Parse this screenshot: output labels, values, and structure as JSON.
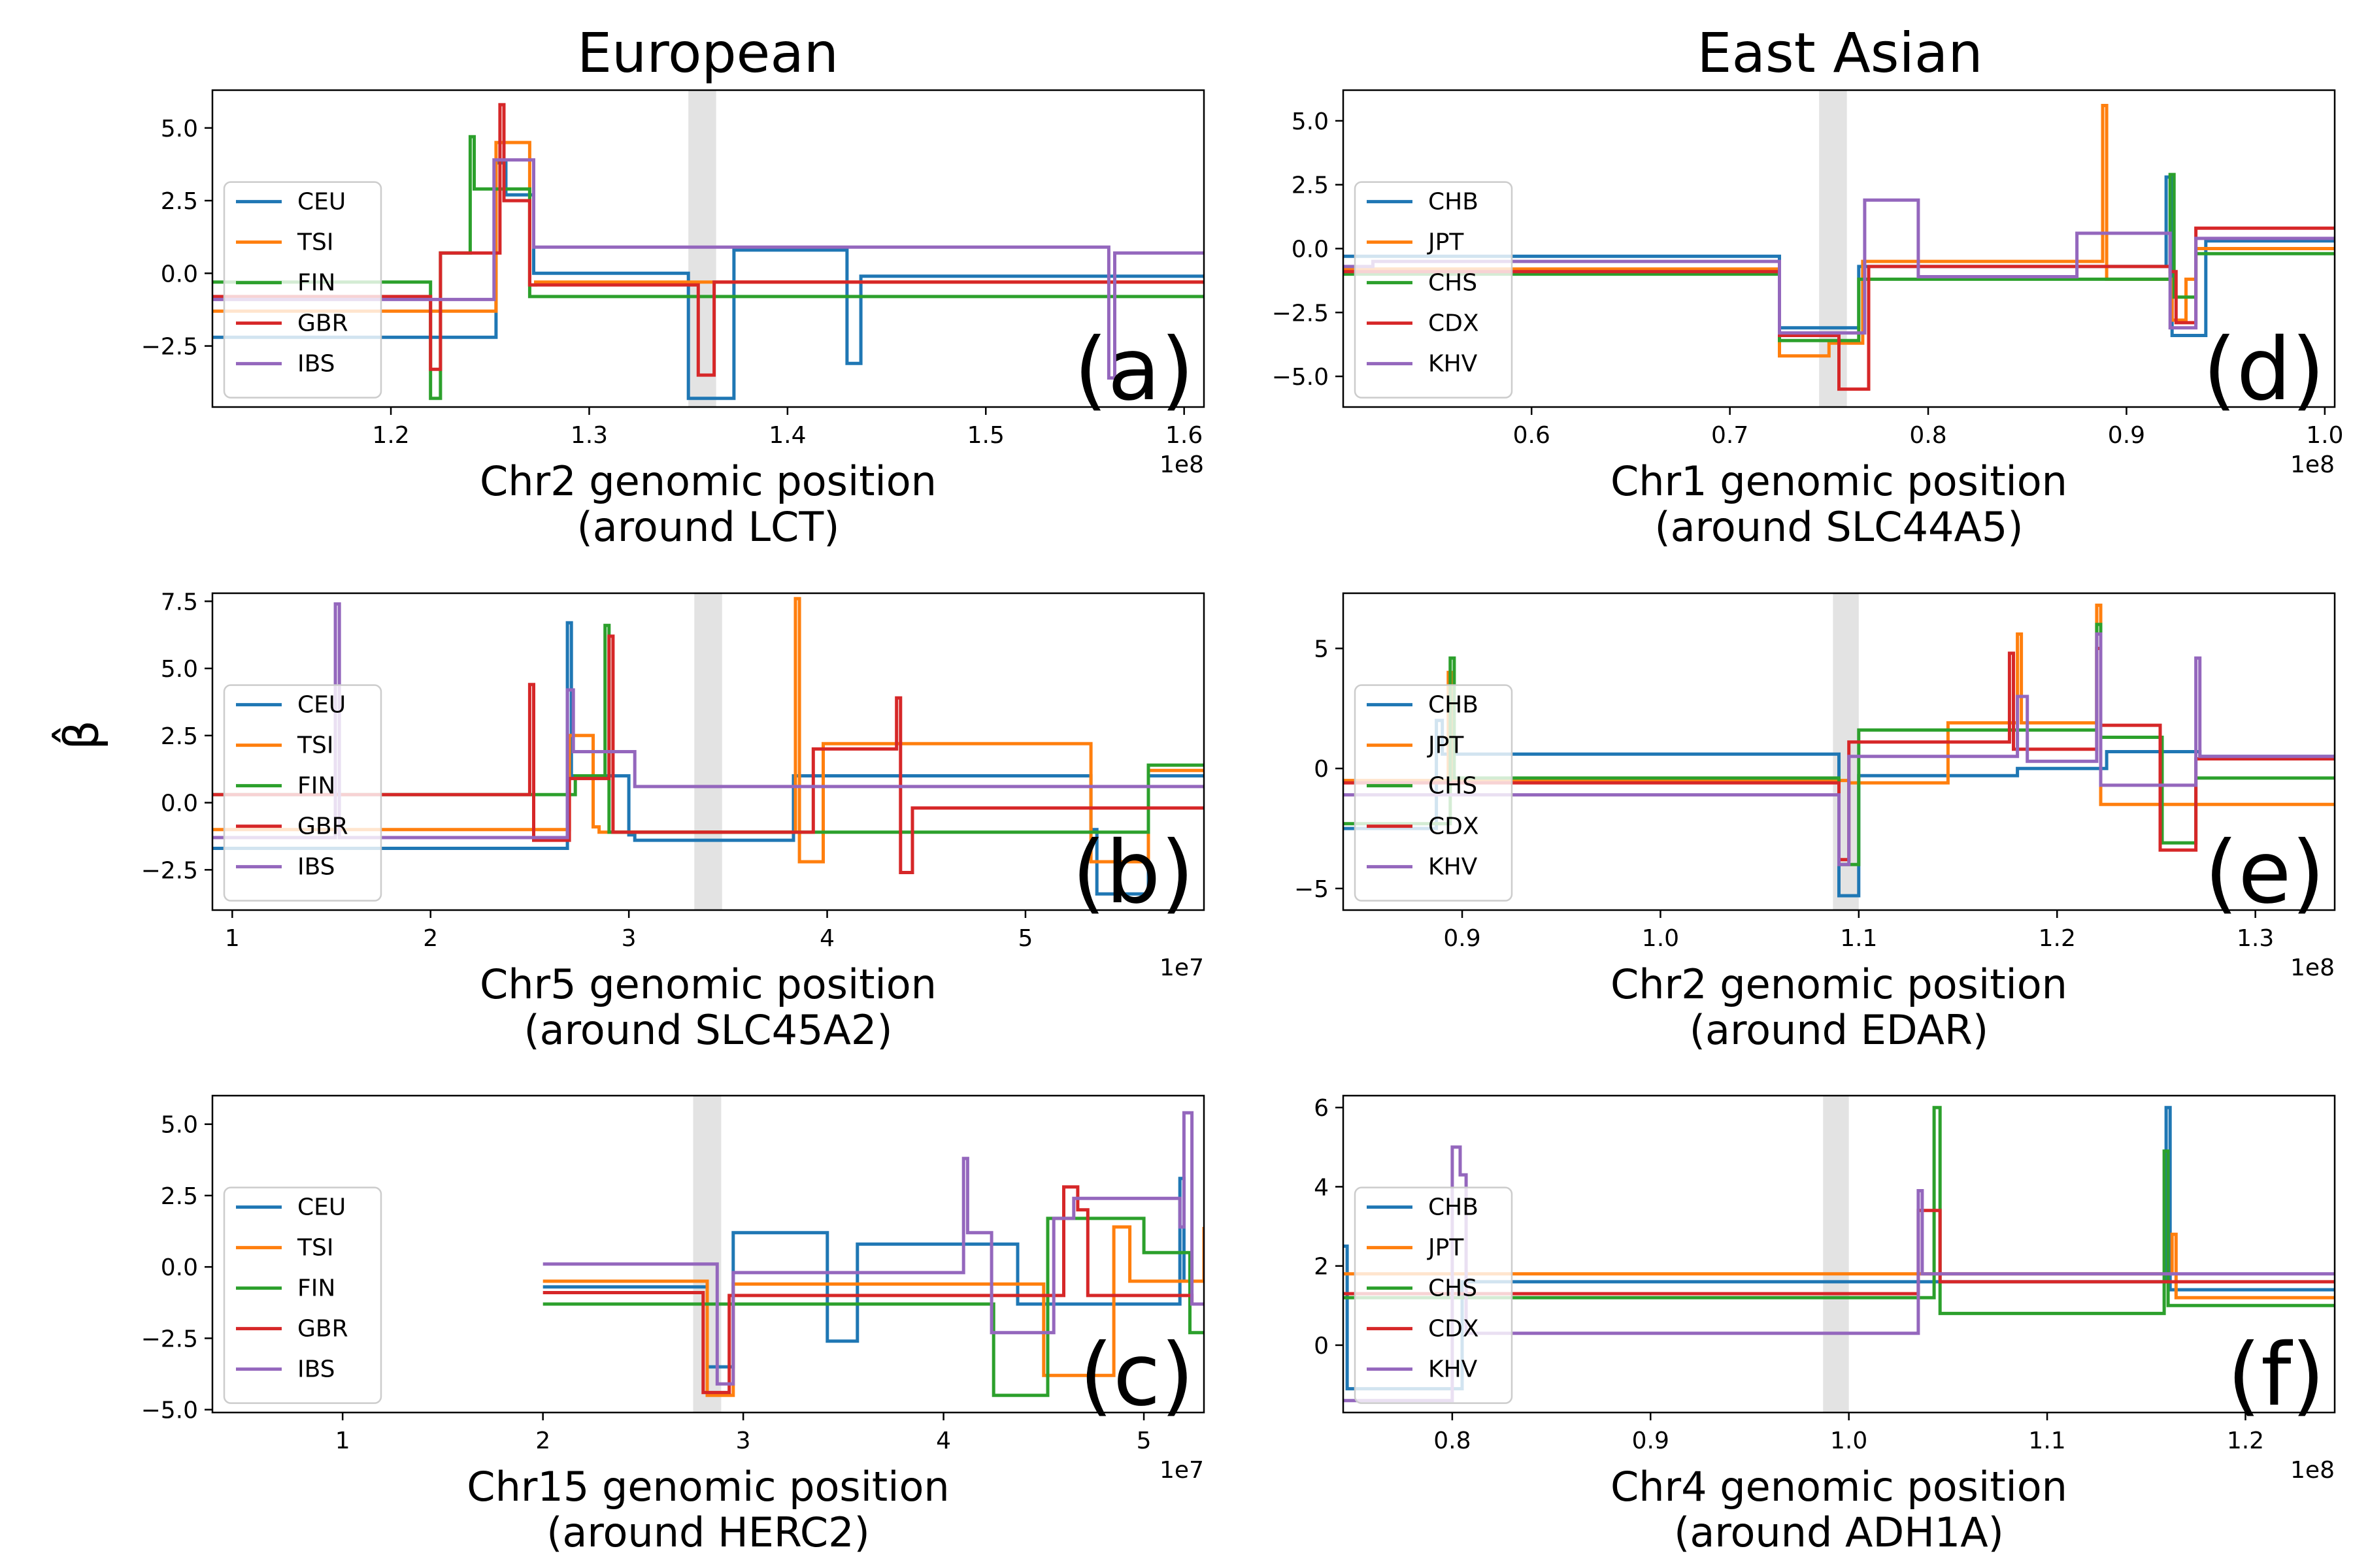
{
  "figure": {
    "column_titles": [
      "European",
      "East Asian"
    ],
    "ylabel": "β̂",
    "colors": {
      "blue": "#1f77b4",
      "orange": "#ff7f0e",
      "green": "#2ca02c",
      "red": "#d62728",
      "purple": "#9467bd",
      "highlight": "#e3e3e3"
    }
  },
  "chart_data": [
    {
      "id": "a",
      "type": "line",
      "step": true,
      "letter": "(a)",
      "xlabel_line1": "Chr2 genomic position",
      "xlabel_line2": "(around LCT)",
      "x_offset_label": "1e8",
      "xlim": [
        1.11,
        1.61
      ],
      "ylim": [
        -4.6,
        6.3
      ],
      "x_ticks": [
        1.2,
        1.3,
        1.4,
        1.5,
        1.6
      ],
      "x_tick_labels": [
        "1.2",
        "1.3",
        "1.4",
        "1.5",
        "1.6"
      ],
      "y_ticks": [
        -2.5,
        0.0,
        2.5,
        5.0
      ],
      "y_tick_labels": [
        "−2.5",
        "0.0",
        "2.5",
        "5.0"
      ],
      "highlight": [
        1.35,
        1.364
      ],
      "legend": [
        "CEU",
        "TSI",
        "FIN",
        "GBR",
        "IBS"
      ],
      "series": [
        {
          "name": "CEU",
          "color": "#1f77b4",
          "x": [
            1.11,
            1.253,
            1.258,
            1.272,
            1.35,
            1.373,
            1.43,
            1.437,
            1.61
          ],
          "y": [
            -2.2,
            3.8,
            2.7,
            0.0,
            -4.3,
            0.8,
            -3.1,
            -0.1,
            -0.1
          ]
        },
        {
          "name": "TSI",
          "color": "#ff7f0e",
          "x": [
            1.11,
            1.253,
            1.256,
            1.27,
            1.273,
            1.61
          ],
          "y": [
            -1.3,
            4.5,
            4.5,
            -0.4,
            -0.3,
            -0.3
          ]
        },
        {
          "name": "FIN",
          "color": "#2ca02c",
          "x": [
            1.11,
            1.22,
            1.225,
            1.24,
            1.242,
            1.27,
            1.273,
            1.61
          ],
          "y": [
            -0.3,
            -4.3,
            0.7,
            4.7,
            2.9,
            -0.8,
            -0.8,
            -0.8
          ]
        },
        {
          "name": "GBR",
          "color": "#d62728",
          "x": [
            1.11,
            1.22,
            1.225,
            1.255,
            1.257,
            1.26,
            1.27,
            1.355,
            1.363,
            1.61
          ],
          "y": [
            -0.8,
            -3.3,
            0.7,
            5.8,
            2.5,
            2.5,
            -0.4,
            -3.5,
            -0.3,
            -0.3
          ]
        },
        {
          "name": "IBS",
          "color": "#9467bd",
          "x": [
            1.11,
            1.24,
            1.252,
            1.272,
            1.562,
            1.565,
            1.61
          ],
          "y": [
            -0.9,
            -0.9,
            3.9,
            0.9,
            -3.6,
            0.7,
            0.7
          ]
        }
      ]
    },
    {
      "id": "b",
      "type": "line",
      "step": true,
      "letter": "(b)",
      "xlabel_line1": "Chr5 genomic position",
      "xlabel_line2": "(around SLC45A2)",
      "x_offset_label": "1e7",
      "xlim": [
        0.9,
        5.9
      ],
      "ylim": [
        -4.0,
        7.8
      ],
      "x_ticks": [
        1,
        2,
        3,
        4,
        5
      ],
      "x_tick_labels": [
        "1",
        "2",
        "3",
        "4",
        "5"
      ],
      "y_ticks": [
        -2.5,
        0.0,
        2.5,
        5.0,
        7.5
      ],
      "y_tick_labels": [
        "−2.5",
        "0.0",
        "2.5",
        "5.0",
        "7.5"
      ],
      "highlight": [
        3.33,
        3.47
      ],
      "legend": [
        "CEU",
        "TSI",
        "FIN",
        "GBR",
        "IBS"
      ],
      "series": [
        {
          "name": "CEU",
          "color": "#1f77b4",
          "x": [
            0.9,
            2.69,
            2.71,
            2.73,
            3.0,
            3.03,
            3.83,
            3.85,
            5.33,
            5.36,
            5.62,
            5.9
          ],
          "y": [
            -1.7,
            6.7,
            1.0,
            1.0,
            -1.2,
            -1.4,
            1.0,
            1.0,
            -1.0,
            -3.4,
            1.0,
            1.0
          ]
        },
        {
          "name": "TSI",
          "color": "#ff7f0e",
          "x": [
            0.9,
            2.7,
            2.72,
            2.82,
            2.85,
            3.84,
            3.86,
            3.98,
            5.33,
            5.36,
            5.62,
            5.9
          ],
          "y": [
            -1.0,
            2.5,
            2.5,
            -0.9,
            -1.1,
            7.6,
            -2.2,
            2.2,
            -2.2,
            -2.2,
            1.2,
            1.2
          ]
        },
        {
          "name": "FIN",
          "color": "#2ca02c",
          "x": [
            0.9,
            2.7,
            2.73,
            2.88,
            2.9,
            3.91,
            5.62,
            5.9
          ],
          "y": [
            0.3,
            0.3,
            1.0,
            6.6,
            -1.1,
            -1.1,
            1.4,
            1.4
          ]
        },
        {
          "name": "GBR",
          "color": "#d62728",
          "x": [
            0.9,
            2.5,
            2.52,
            2.7,
            2.73,
            2.9,
            2.92,
            3.93,
            4.35,
            4.37,
            4.43,
            5.9
          ],
          "y": [
            0.3,
            4.4,
            -1.4,
            0.9,
            0.9,
            6.2,
            -1.1,
            2.0,
            3.9,
            -2.6,
            -0.2,
            -0.2
          ]
        },
        {
          "name": "IBS",
          "color": "#9467bd",
          "x": [
            0.9,
            1.52,
            1.54,
            2.69,
            2.72,
            3.03,
            5.9
          ],
          "y": [
            -1.3,
            7.4,
            -1.3,
            4.2,
            1.9,
            0.6,
            0.6
          ]
        }
      ]
    },
    {
      "id": "c",
      "type": "line",
      "step": true,
      "letter": "(c)",
      "xlabel_line1": "Chr15 genomic position",
      "xlabel_line2": "(around HERC2)",
      "x_offset_label": "1e7",
      "xlim": [
        0.35,
        5.3
      ],
      "ylim": [
        -5.1,
        6.0
      ],
      "x_ticks": [
        1,
        2,
        3,
        4,
        5
      ],
      "x_tick_labels": [
        "1",
        "2",
        "3",
        "4",
        "5"
      ],
      "y_ticks": [
        -5.0,
        -2.5,
        0.0,
        2.5,
        5.0
      ],
      "y_tick_labels": [
        "−5.0",
        "−2.5",
        "0.0",
        "2.5",
        "5.0"
      ],
      "highlight": [
        2.75,
        2.89
      ],
      "legend": [
        "CEU",
        "TSI",
        "FIN",
        "GBR",
        "IBS"
      ],
      "series": [
        {
          "name": "CEU",
          "color": "#1f77b4",
          "x": [
            2.0,
            2.82,
            2.95,
            3.42,
            3.57,
            4.37,
            4.45,
            5.18,
            5.2,
            5.22,
            5.3
          ],
          "y": [
            -0.7,
            -3.5,
            1.2,
            -2.6,
            0.8,
            -1.3,
            -1.3,
            3.1,
            -0.5,
            -0.5,
            -0.5
          ]
        },
        {
          "name": "TSI",
          "color": "#ff7f0e",
          "x": [
            2.0,
            2.82,
            2.95,
            4.4,
            4.5,
            4.85,
            4.93,
            5.3
          ],
          "y": [
            -0.5,
            -4.5,
            -0.6,
            -0.6,
            -3.8,
            1.4,
            -0.5,
            1.4
          ]
        },
        {
          "name": "FIN",
          "color": "#2ca02c",
          "x": [
            2.0,
            2.93,
            4.25,
            4.52,
            5.0,
            5.23,
            5.3
          ],
          "y": [
            -1.3,
            -1.3,
            -4.5,
            1.7,
            0.5,
            -2.3,
            -2.3
          ]
        },
        {
          "name": "GBR",
          "color": "#d62728",
          "x": [
            2.0,
            2.8,
            2.93,
            4.6,
            4.67,
            4.72,
            5.24,
            5.3
          ],
          "y": [
            -0.9,
            -4.4,
            -1.0,
            2.8,
            2.0,
            -1.0,
            -1.3,
            -1.3
          ]
        },
        {
          "name": "IBS",
          "color": "#9467bd",
          "x": [
            2.0,
            2.87,
            2.95,
            4.1,
            4.12,
            4.24,
            4.42,
            4.55,
            4.65,
            5.18,
            5.2,
            5.24,
            5.3
          ],
          "y": [
            0.1,
            -4.1,
            -0.2,
            3.8,
            1.2,
            -2.3,
            -2.3,
            1.7,
            2.4,
            1.4,
            5.4,
            -1.3,
            -1.3
          ]
        }
      ]
    },
    {
      "id": "d",
      "type": "line",
      "step": true,
      "letter": "(d)",
      "xlabel_line1": "Chr1 genomic position",
      "xlabel_line2": "(around SLC44A5)",
      "x_offset_label": "1e8",
      "xlim": [
        0.505,
        1.005
      ],
      "ylim": [
        -6.2,
        6.2
      ],
      "x_ticks": [
        0.6,
        0.7,
        0.8,
        0.9,
        1.0
      ],
      "x_tick_labels": [
        "0.6",
        "0.7",
        "0.8",
        "0.9",
        "1.0"
      ],
      "y_ticks": [
        -5.0,
        -2.5,
        0.0,
        2.5,
        5.0
      ],
      "y_tick_labels": [
        "−5.0",
        "−2.5",
        "0.0",
        "2.5",
        "5.0"
      ],
      "highlight": [
        0.745,
        0.759
      ],
      "legend": [
        "CHB",
        "JPT",
        "CHS",
        "CDX",
        "KHV"
      ],
      "series": [
        {
          "name": "CHB",
          "color": "#1f77b4",
          "x": [
            0.505,
            0.725,
            0.765,
            0.92,
            0.923,
            0.925,
            0.94,
            1.005
          ],
          "y": [
            -0.3,
            -3.1,
            -0.7,
            2.8,
            -3.4,
            -3.4,
            0.3,
            0.3
          ]
        },
        {
          "name": "JPT",
          "color": "#ff7f0e",
          "x": [
            0.505,
            0.725,
            0.75,
            0.767,
            0.888,
            0.89,
            0.923,
            0.93,
            0.935,
            1.005
          ],
          "y": [
            -0.8,
            -4.2,
            -3.7,
            -0.5,
            5.6,
            -1.2,
            -2.8,
            -1.2,
            0.0,
            0.0
          ]
        },
        {
          "name": "CHS",
          "color": "#2ca02c",
          "x": [
            0.505,
            0.725,
            0.765,
            0.922,
            0.924,
            0.93,
            0.935,
            1.005
          ],
          "y": [
            -1.0,
            -3.6,
            -1.2,
            2.9,
            -1.9,
            -1.9,
            -0.2,
            -0.2
          ]
        },
        {
          "name": "CDX",
          "color": "#d62728",
          "x": [
            0.505,
            0.725,
            0.755,
            0.77,
            0.922,
            0.925,
            0.935,
            1.005
          ],
          "y": [
            -0.9,
            -3.4,
            -5.5,
            -0.7,
            -0.9,
            -2.9,
            0.8,
            0.8
          ]
        },
        {
          "name": "KHV",
          "color": "#9467bd",
          "x": [
            0.505,
            0.52,
            0.725,
            0.768,
            0.795,
            0.875,
            0.922,
            0.925,
            0.935,
            1.005
          ],
          "y": [
            -0.7,
            -0.5,
            -3.3,
            1.9,
            -1.1,
            0.6,
            -3.1,
            -3.1,
            0.4,
            0.4
          ]
        }
      ]
    },
    {
      "id": "e",
      "type": "line",
      "step": true,
      "letter": "(e)",
      "xlabel_line1": "Chr2 genomic position",
      "xlabel_line2": "(around EDAR)",
      "x_offset_label": "1e8",
      "xlim": [
        0.84,
        1.34
      ],
      "ylim": [
        -5.9,
        7.3
      ],
      "x_ticks": [
        0.9,
        1.0,
        1.1,
        1.2,
        1.3
      ],
      "x_tick_labels": [
        "0.9",
        "1.0",
        "1.1",
        "1.2",
        "1.3"
      ],
      "y_ticks": [
        -5,
        0,
        5
      ],
      "y_tick_labels": [
        "−5",
        "0",
        "5"
      ],
      "highlight": [
        1.087,
        1.1
      ],
      "legend": [
        "CHB",
        "JPT",
        "CHS",
        "CDX",
        "KHV"
      ],
      "series": [
        {
          "name": "CHB",
          "color": "#1f77b4",
          "x": [
            0.84,
            0.887,
            0.89,
            1.087,
            1.09,
            1.098,
            1.1,
            1.157,
            1.18,
            1.222,
            1.225,
            1.253,
            1.272,
            1.34
          ],
          "y": [
            -2.5,
            2.0,
            0.6,
            0.6,
            -5.3,
            -5.3,
            -0.3,
            -0.3,
            0.0,
            0.0,
            0.7,
            0.7,
            0.5,
            0.5
          ]
        },
        {
          "name": "JPT",
          "color": "#ff7f0e",
          "x": [
            0.84,
            0.893,
            0.895,
            1.088,
            1.095,
            1.145,
            1.18,
            1.182,
            1.22,
            1.222,
            1.34
          ],
          "y": [
            -0.5,
            4.0,
            -0.5,
            -0.5,
            -0.6,
            1.9,
            5.6,
            1.9,
            6.8,
            -1.5,
            -1.5
          ]
        },
        {
          "name": "CHS",
          "color": "#2ca02c",
          "x": [
            0.84,
            0.894,
            0.896,
            1.09,
            1.1,
            1.17,
            1.22,
            1.222,
            1.253,
            1.27,
            1.34
          ],
          "y": [
            -2.3,
            4.6,
            -0.4,
            -4.0,
            1.6,
            1.6,
            6.0,
            1.3,
            -3.1,
            -0.4,
            -0.4
          ]
        },
        {
          "name": "CDX",
          "color": "#d62728",
          "x": [
            0.84,
            1.09,
            1.095,
            1.176,
            1.178,
            1.22,
            1.222,
            1.252,
            1.27,
            1.34
          ],
          "y": [
            -0.6,
            -3.8,
            1.1,
            4.8,
            0.8,
            5.0,
            1.8,
            -3.4,
            0.4,
            0.4
          ]
        },
        {
          "name": "KHV",
          "color": "#9467bd",
          "x": [
            0.84,
            1.09,
            1.095,
            1.18,
            1.185,
            1.22,
            1.222,
            1.27,
            1.272,
            1.34
          ],
          "y": [
            -1.1,
            -4.0,
            0.5,
            3.0,
            0.3,
            5.6,
            -0.7,
            4.6,
            0.5,
            0.5
          ]
        }
      ]
    },
    {
      "id": "f",
      "type": "line",
      "step": true,
      "letter": "(f)",
      "xlabel_line1": "Chr4 genomic position",
      "xlabel_line2": "(around ADH1A)",
      "x_offset_label": "1e8",
      "xlim": [
        0.745,
        1.245
      ],
      "ylim": [
        -1.7,
        6.3
      ],
      "x_ticks": [
        0.8,
        0.9,
        1.0,
        1.1,
        1.2
      ],
      "x_tick_labels": [
        "0.8",
        "0.9",
        "1.0",
        "1.1",
        "1.2"
      ],
      "y_ticks": [
        0,
        2,
        4,
        6
      ],
      "y_tick_labels": [
        "0",
        "2",
        "4",
        "6"
      ],
      "highlight": [
        0.987,
        1.0
      ],
      "legend": [
        "CHB",
        "JPT",
        "CHS",
        "CDX",
        "KHV"
      ],
      "series": [
        {
          "name": "CHB",
          "color": "#1f77b4",
          "x": [
            0.745,
            0.747,
            0.802,
            0.805,
            1.16,
            1.162,
            1.245
          ],
          "y": [
            2.5,
            -1.1,
            -1.1,
            1.6,
            6.0,
            1.4,
            1.4
          ]
        },
        {
          "name": "JPT",
          "color": "#ff7f0e",
          "x": [
            0.745,
            0.8,
            1.163,
            1.165,
            1.245
          ],
          "y": [
            1.8,
            1.8,
            2.8,
            1.2,
            1.2
          ]
        },
        {
          "name": "CHS",
          "color": "#2ca02c",
          "x": [
            0.745,
            1.043,
            1.046,
            1.159,
            1.161,
            1.245
          ],
          "y": [
            1.2,
            6.0,
            0.8,
            4.9,
            1.0,
            1.0
          ]
        },
        {
          "name": "CDX",
          "color": "#d62728",
          "x": [
            0.745,
            1.035,
            1.046,
            1.245
          ],
          "y": [
            1.3,
            3.4,
            1.6,
            1.6
          ]
        },
        {
          "name": "KHV",
          "color": "#9467bd",
          "x": [
            0.745,
            0.8,
            0.804,
            0.807,
            1.035,
            1.037,
            1.245
          ],
          "y": [
            -1.4,
            5.0,
            4.3,
            0.3,
            3.9,
            1.8,
            1.8
          ]
        }
      ]
    }
  ]
}
